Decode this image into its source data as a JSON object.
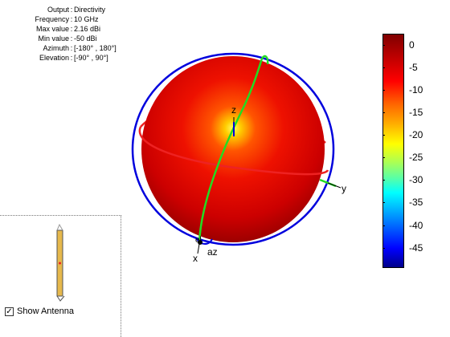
{
  "info": {
    "rows": [
      {
        "label": "Output",
        "value": "Directivity"
      },
      {
        "label": "Frequency",
        "value": "10 GHz"
      },
      {
        "label": "Max value",
        "value": "2.16 dBi"
      },
      {
        "label": "Min value",
        "value": "-50 dBi"
      },
      {
        "label": "Azimuth",
        "value": "[-180° , 180°]"
      },
      {
        "label": "Elevation",
        "value": "[-90° , 90°]"
      }
    ]
  },
  "axes": {
    "z": "z",
    "y": "y",
    "x": "x",
    "az": "az",
    "el": "el"
  },
  "colorbar": {
    "ticks": [
      "0",
      "-5",
      "-10",
      "-15",
      "-20",
      "-25",
      "-30",
      "-35",
      "-40",
      "-45"
    ]
  },
  "antenna_panel": {
    "show_antenna_label": "Show Antenna",
    "show_antenna_checked": "✓"
  },
  "colors": {
    "sphere_outer": "#c00000",
    "sphere_center": "#ffff33",
    "azimuth_circle": "#0000dd",
    "elevation_ring": "#ee2222",
    "meridian": "#22dd22",
    "antenna": "#e6b84c"
  }
}
